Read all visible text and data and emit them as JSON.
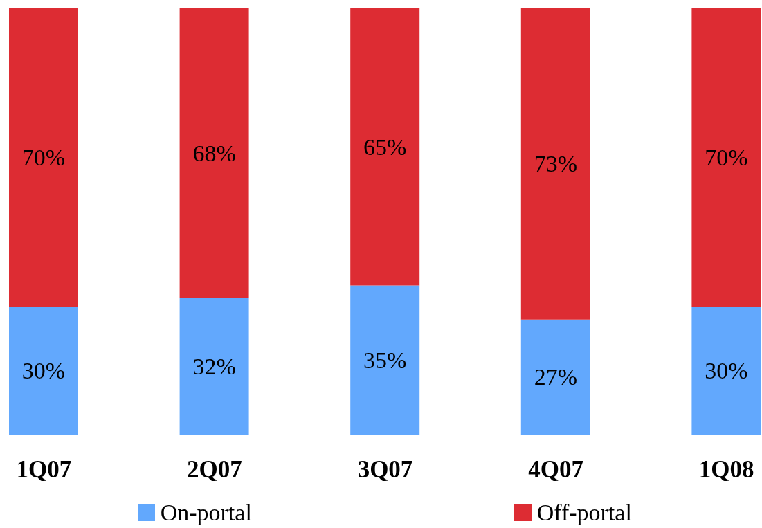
{
  "chart_data": {
    "type": "bar",
    "categories": [
      "1Q07",
      "2Q07",
      "3Q07",
      "4Q07",
      "1Q08"
    ],
    "stacked": true,
    "legend": "bottom",
    "series": [
      {
        "name": "On-portal",
        "color": "#62a8fd",
        "values": [
          30,
          32,
          35,
          27,
          30
        ],
        "value_labels": [
          "30%",
          "32%",
          "35%",
          "27%",
          "30%"
        ]
      },
      {
        "name": "Off-portal",
        "color": "#dd2c33",
        "values": [
          70,
          68,
          65,
          73,
          70
        ],
        "value_labels": [
          "70%",
          "68%",
          "65%",
          "73%",
          "70%"
        ]
      }
    ]
  }
}
